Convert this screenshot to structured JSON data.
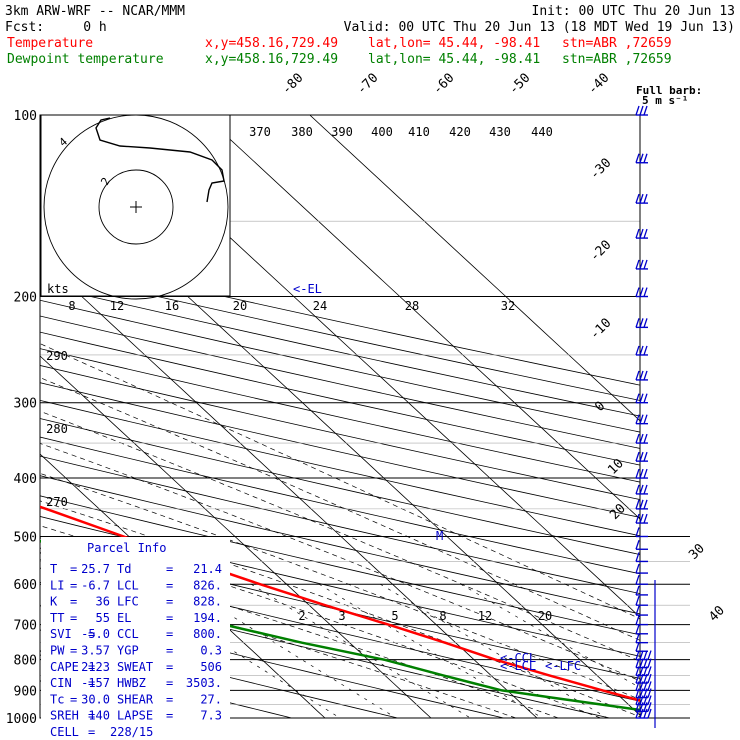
{
  "header": {
    "model": "3km ARW-WRF -- NCAR/MMM",
    "init": "Init: 00 UTC Thu 20 Jun 13",
    "fcst": "Fcst:     0 h",
    "valid": "Valid: 00 UTC Thu 20 Jun 13 (18 MDT Wed 19 Jun 13)",
    "temp_line": {
      "label": "Temperature",
      "xy": "x,y=458.16,729.49",
      "latlon": "lat,lon= 45.44, -98.41",
      "stn": "stn=ABR ,72659"
    },
    "dew_line": {
      "label": "Dewpoint temperature",
      "xy": "x,y=458.16,729.49",
      "latlon": "lat,lon= 45.44, -98.41",
      "stn": "stn=ABR ,72659"
    },
    "barb_note": "Full barb:",
    "barb_unit": "5 m s⁻¹"
  },
  "colors": {
    "temperature": "#ff0000",
    "dewpoint": "#008000",
    "text_blue": "#0000cc",
    "wind": "#0000cc",
    "isobar": "#000000"
  },
  "chart_data": {
    "type": "line",
    "pressure_levels": [
      "100",
      "200",
      "300",
      "400",
      "500",
      "600",
      "700",
      "800",
      "900",
      "1000"
    ],
    "isotherm_labels": [
      "-80",
      "-70",
      "-60",
      "-50",
      "-40",
      "-30",
      "-20",
      "-10",
      "0",
      "10",
      "20",
      "30",
      "40"
    ],
    "theta_labels": [
      "370",
      "380",
      "390",
      "400",
      "410",
      "420",
      "430",
      "440"
    ],
    "theta_left_labels": [
      "290",
      "280",
      "270"
    ],
    "mixing_ratio_labels": [
      "2",
      "3",
      "5",
      "8",
      "12",
      "20"
    ],
    "hodo_ring_labels": [
      "8",
      "12",
      "16",
      "20",
      "24",
      "28",
      "32"
    ],
    "hodo_unit": "kts",
    "hodo_height_labels": [
      "2",
      "4"
    ],
    "level_markers": [
      {
        "label": "<-EL",
        "p": 194
      },
      {
        "label": "<-CCL",
        "p": 800
      },
      {
        "label": "<-LCL",
        "p": 826
      },
      {
        "label": "<-LFC",
        "p": 828
      }
    ],
    "freezing_marker": "M",
    "temperature_profile": [
      {
        "p": 1000,
        "t": 29.5
      },
      {
        "p": 975,
        "t": 25.7
      },
      {
        "p": 950,
        "t": 22.5
      },
      {
        "p": 900,
        "t": 19.0
      },
      {
        "p": 850,
        "t": 15.5
      },
      {
        "p": 800,
        "t": 12.0
      },
      {
        "p": 750,
        "t": 9.0
      },
      {
        "p": 700,
        "t": 5.5
      },
      {
        "p": 650,
        "t": 1.5
      },
      {
        "p": 600,
        "t": -2.5
      },
      {
        "p": 550,
        "t": -6.5
      },
      {
        "p": 500,
        "t": -10.5
      },
      {
        "p": 450,
        "t": -15.0
      },
      {
        "p": 400,
        "t": -20.5
      },
      {
        "p": 350,
        "t": -28.0
      },
      {
        "p": 300,
        "t": -36.5
      },
      {
        "p": 250,
        "t": -46.5
      },
      {
        "p": 215,
        "t": -55.0
      },
      {
        "p": 200,
        "t": -58.0
      },
      {
        "p": 185,
        "t": -58.5
      },
      {
        "p": 175,
        "t": -56.0
      },
      {
        "p": 160,
        "t": -53.5
      },
      {
        "p": 150,
        "t": -52.0
      },
      {
        "p": 125,
        "t": -52.0
      },
      {
        "p": 100,
        "t": -53.0
      }
    ],
    "dewpoint_profile": [
      {
        "p": 975,
        "td": 21.4
      },
      {
        "p": 950,
        "td": 17.5
      },
      {
        "p": 925,
        "td": 13.5
      },
      {
        "p": 900,
        "td": 9.5
      },
      {
        "p": 875,
        "td": 7.5
      },
      {
        "p": 850,
        "td": 5.5
      },
      {
        "p": 800,
        "td": 1.5
      },
      {
        "p": 750,
        "td": -4.5
      },
      {
        "p": 700,
        "td": -10.0
      },
      {
        "p": 675,
        "td": -17.0
      },
      {
        "p": 640,
        "td": -19.0
      },
      {
        "p": 600,
        "td": -15.0
      },
      {
        "p": 570,
        "td": -13.5
      },
      {
        "p": 540,
        "td": -15.0
      },
      {
        "p": 500,
        "td": -20.0
      },
      {
        "p": 450,
        "td": -28.0
      },
      {
        "p": 400,
        "td": -36.0
      },
      {
        "p": 350,
        "td": -45.0
      },
      {
        "p": 300,
        "td": -52.0
      },
      {
        "p": 250,
        "td": -62.0
      },
      {
        "p": 200,
        "td": -74.0
      },
      {
        "p": 180,
        "td": -77.0
      },
      {
        "p": 160,
        "td": -76.0
      },
      {
        "p": 145,
        "td": -78.0
      },
      {
        "p": 125,
        "td": -83.0
      },
      {
        "p": 100,
        "td": -80.0
      }
    ],
    "wind_levels": [
      100,
      120,
      140,
      160,
      180,
      200,
      225,
      250,
      275,
      300,
      325,
      350,
      375,
      400,
      425,
      450,
      475,
      500,
      525,
      550,
      575,
      600,
      625,
      650,
      675,
      700,
      725,
      750,
      775,
      800,
      825,
      850,
      875,
      900,
      925,
      950,
      975,
      1000
    ]
  },
  "parcel_info": {
    "title": "Parcel Info",
    "rows": [
      [
        "T",
        "=",
        "25.7",
        "Td",
        "=",
        "21.4"
      ],
      [
        "LI",
        "=",
        "-6.7",
        "LCL",
        "=",
        "826."
      ],
      [
        "K",
        "=",
        "36",
        "LFC",
        "=",
        "828."
      ],
      [
        "TT",
        "=",
        "55",
        "EL",
        "=",
        "194."
      ],
      [
        "SVI",
        "=",
        "-5.0",
        "CCL",
        "=",
        "800."
      ],
      [
        "PW",
        "=",
        "3.57",
        "YGP",
        "=",
        "0.3"
      ],
      [
        "CAPE",
        "=",
        "2123",
        "SWEAT",
        "=",
        "506"
      ],
      [
        "CIN",
        "=",
        "-157",
        "HWBZ",
        "=",
        "3503."
      ],
      [
        "Tc",
        "=",
        "30.0",
        "SHEAR",
        "=",
        "27."
      ],
      [
        "SREH",
        "=",
        "140",
        "LAPSE",
        "=",
        "7.3"
      ],
      [
        "CELL",
        "=",
        "228/15",
        "",
        "",
        ""
      ]
    ]
  }
}
